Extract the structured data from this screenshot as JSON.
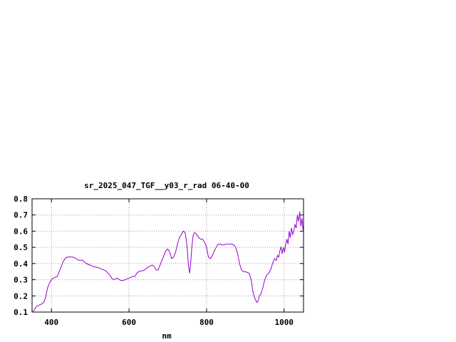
{
  "chart_data": {
    "type": "line",
    "title": "sr_2025_047_TGF__y03_r_rad 06-40-00",
    "xlabel": "nm",
    "ylabel": "",
    "xlim": [
      350,
      1050
    ],
    "ylim": [
      0.1,
      0.8
    ],
    "grid": true,
    "x_ticks": [
      400,
      600,
      800,
      1000
    ],
    "y_ticks": [
      0.1,
      0.2,
      0.3,
      0.4,
      0.5,
      0.6,
      0.7,
      0.8
    ],
    "x_tick_labels": [
      "400",
      "600",
      "800",
      "1000"
    ],
    "y_tick_labels": [
      "0.1",
      "0.2",
      "0.3",
      "0.4",
      "0.5",
      "0.6",
      "0.7",
      "0.8"
    ],
    "line_color": "#9400d3",
    "grid_color": "#a0a0a0",
    "series": [
      {
        "x": [
          350,
          355,
          360,
          365,
          370,
          375,
          380,
          385,
          390,
          395,
          400,
          405,
          410,
          415,
          420,
          425,
          430,
          435,
          440,
          445,
          450,
          455,
          460,
          470,
          480,
          485,
          490,
          495,
          500,
          505,
          510,
          520,
          530,
          540,
          550,
          555,
          560,
          565,
          570,
          575,
          580,
          585,
          590,
          595,
          600,
          605,
          610,
          615,
          620,
          625,
          630,
          635,
          640,
          645,
          650,
          655,
          660,
          665,
          670,
          675,
          680,
          685,
          690,
          695,
          700,
          705,
          710,
          715,
          720,
          725,
          730,
          735,
          740,
          745,
          750,
          753,
          756,
          759,
          762,
          765,
          768,
          771,
          774,
          777,
          780,
          785,
          790,
          795,
          800,
          805,
          810,
          815,
          820,
          825,
          830,
          835,
          840,
          845,
          850,
          855,
          860,
          865,
          870,
          875,
          880,
          885,
          890,
          895,
          900,
          905,
          910,
          915,
          920,
          925,
          930,
          933,
          936,
          940,
          945,
          950,
          955,
          960,
          965,
          970,
          975,
          980,
          983,
          986,
          989,
          992,
          995,
          998,
          1001,
          1004,
          1007,
          1010,
          1013,
          1016,
          1019,
          1022,
          1025,
          1028,
          1031,
          1034,
          1037,
          1040,
          1043,
          1046,
          1049
        ],
        "y": [
          0.1,
          0.11,
          0.13,
          0.14,
          0.145,
          0.15,
          0.16,
          0.19,
          0.25,
          0.28,
          0.3,
          0.31,
          0.315,
          0.32,
          0.35,
          0.38,
          0.41,
          0.43,
          0.44,
          0.44,
          0.44,
          0.44,
          0.435,
          0.42,
          0.42,
          0.41,
          0.4,
          0.395,
          0.39,
          0.385,
          0.38,
          0.375,
          0.365,
          0.355,
          0.33,
          0.31,
          0.3,
          0.305,
          0.31,
          0.3,
          0.295,
          0.295,
          0.3,
          0.305,
          0.31,
          0.315,
          0.32,
          0.32,
          0.34,
          0.35,
          0.355,
          0.355,
          0.36,
          0.37,
          0.38,
          0.385,
          0.39,
          0.38,
          0.36,
          0.36,
          0.39,
          0.42,
          0.45,
          0.48,
          0.49,
          0.47,
          0.43,
          0.44,
          0.47,
          0.52,
          0.56,
          0.58,
          0.6,
          0.59,
          0.5,
          0.4,
          0.34,
          0.4,
          0.5,
          0.57,
          0.59,
          0.59,
          0.58,
          0.57,
          0.56,
          0.55,
          0.55,
          0.53,
          0.5,
          0.44,
          0.43,
          0.45,
          0.48,
          0.5,
          0.52,
          0.52,
          0.515,
          0.515,
          0.52,
          0.52,
          0.52,
          0.52,
          0.515,
          0.5,
          0.46,
          0.4,
          0.36,
          0.35,
          0.35,
          0.345,
          0.34,
          0.3,
          0.22,
          0.18,
          0.16,
          0.17,
          0.2,
          0.21,
          0.25,
          0.3,
          0.33,
          0.34,
          0.36,
          0.4,
          0.43,
          0.42,
          0.45,
          0.44,
          0.48,
          0.5,
          0.46,
          0.5,
          0.47,
          0.52,
          0.55,
          0.52,
          0.6,
          0.56,
          0.62,
          0.58,
          0.6,
          0.64,
          0.62,
          0.7,
          0.66,
          0.72,
          0.63,
          0.68,
          0.6
        ]
      }
    ]
  }
}
